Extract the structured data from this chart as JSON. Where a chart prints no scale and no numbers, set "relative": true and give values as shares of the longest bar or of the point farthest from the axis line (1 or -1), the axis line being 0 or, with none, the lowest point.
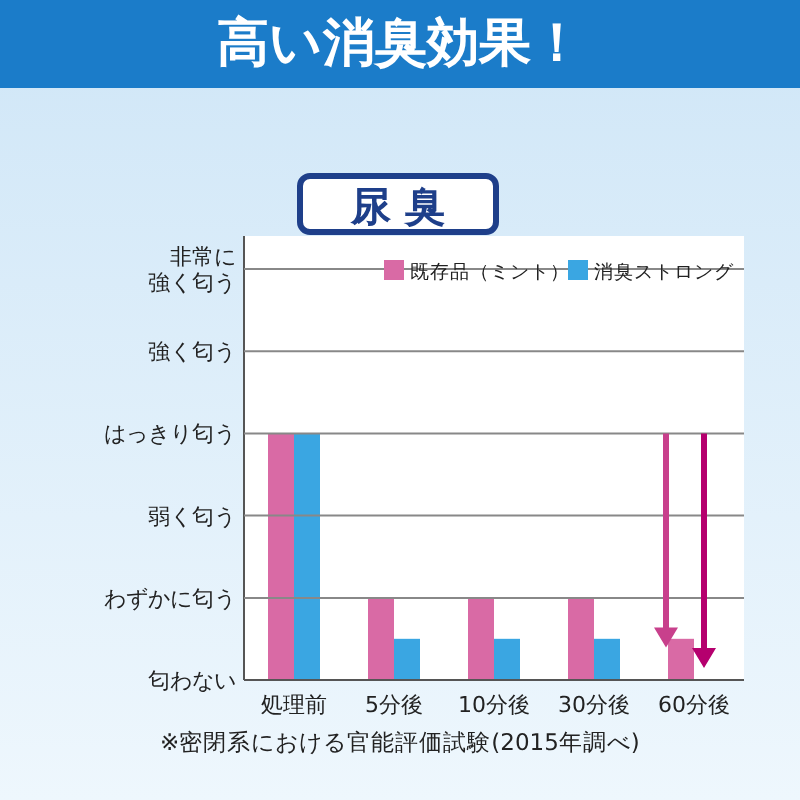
{
  "chart_data": {
    "type": "bar",
    "title": "高い消臭効果！",
    "subtitle": "尿 臭",
    "categories": [
      "処理前",
      "5分後",
      "10分後",
      "30分後",
      "60分後"
    ],
    "relative": true,
    "series": [
      {
        "name": "既存品（ミント）",
        "color": "#d96aa5",
        "values": [
          1,
          0.333,
          0.333,
          0.333,
          0.167
        ]
      },
      {
        "name": "消臭ストロング",
        "color": "#3aa6e2",
        "values": [
          1,
          0.167,
          0.167,
          0.167,
          0
        ]
      }
    ],
    "legend": "top right",
    "ref_lines": [
      {
        "axis": "y",
        "value": 0.333,
        "label": "わずかに匂う",
        "color": "#888888"
      },
      {
        "axis": "y",
        "value": 0.667,
        "label": "弱く匂う",
        "color": "#888888"
      },
      {
        "axis": "y",
        "value": 1,
        "label": "はっきり匂う",
        "color": "#888888"
      },
      {
        "axis": "y",
        "value": 1.333,
        "label": "強く匂う",
        "color": "#888888"
      },
      {
        "axis": "y",
        "value": 1.667,
        "label": "非常に強く匂う",
        "color": "#888888"
      }
    ],
    "annotations": [
      "匂わない",
      "※密閉系における官能評価試験(2015年調べ)"
    ]
  }
}
